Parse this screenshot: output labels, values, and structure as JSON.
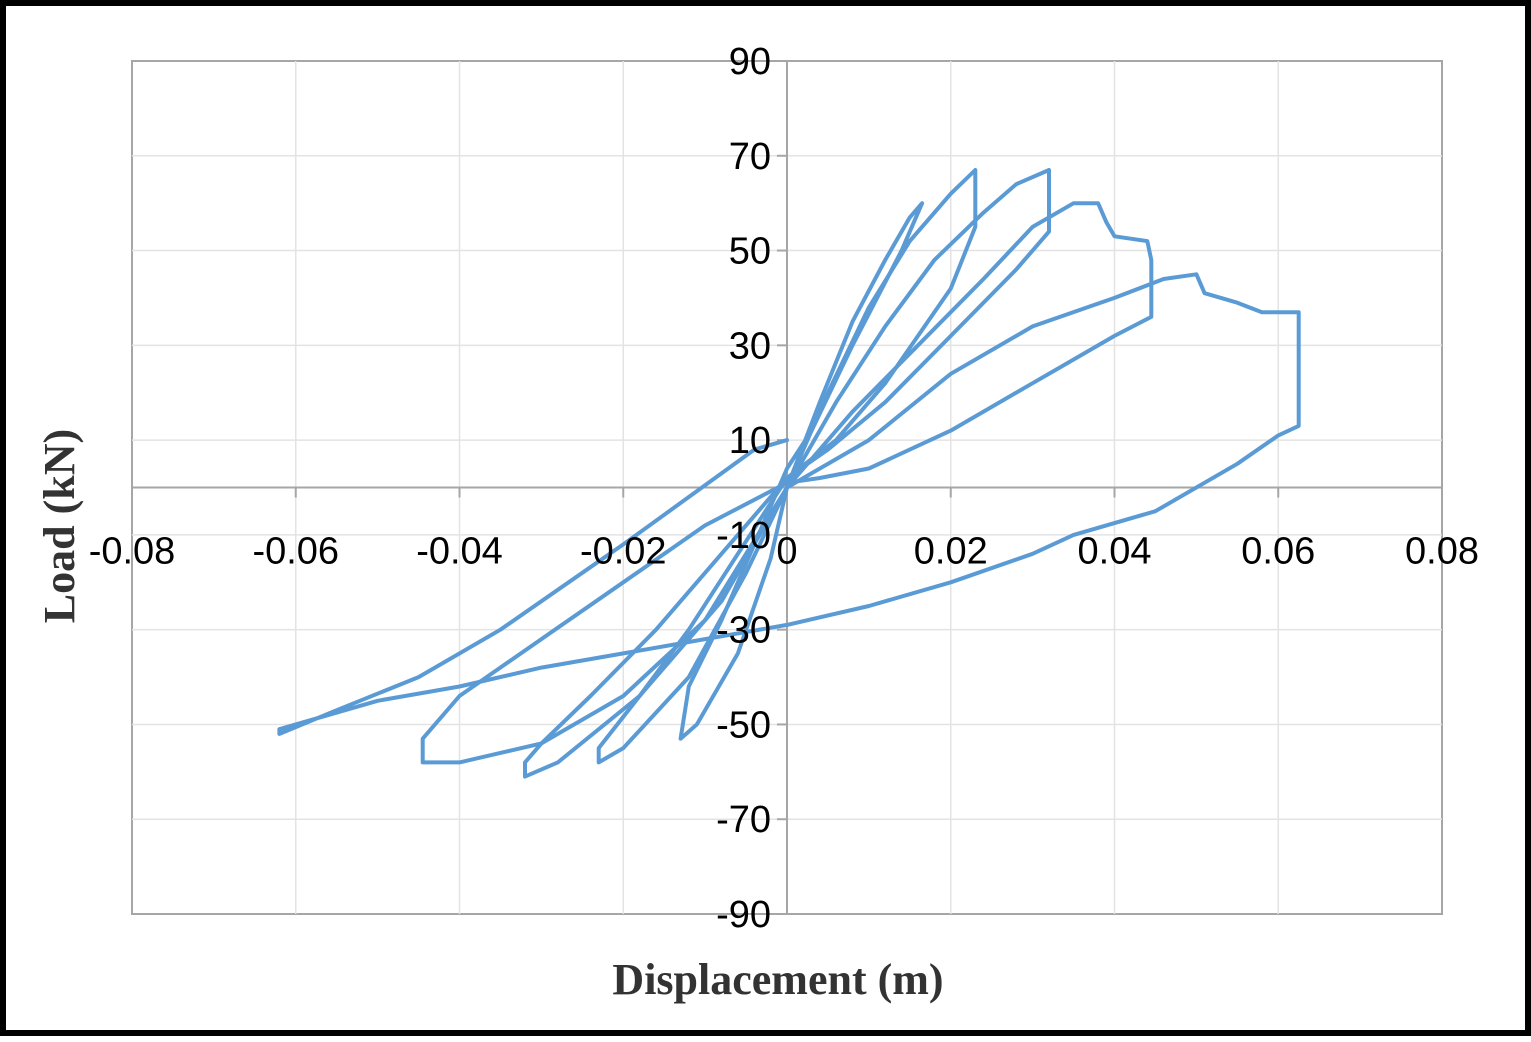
{
  "chart_data": {
    "type": "line",
    "title": "",
    "xlabel": "Displacement (m)",
    "ylabel": "Load (kN)",
    "xlim": [
      -0.08,
      0.08
    ],
    "ylim": [
      -90,
      90
    ],
    "x_ticks": [
      "-0.08",
      "-0.06",
      "-0.04",
      "-0.02",
      "0",
      "0.02",
      "0.04",
      "0.06",
      "0.08"
    ],
    "y_ticks": [
      "90",
      "70",
      "50",
      "30",
      "10",
      "-10",
      "-30",
      "-50",
      "-70",
      "-90"
    ],
    "grid": true,
    "legend": "none",
    "series": [
      {
        "color": "#5b9bd5",
        "loops": [
          {
            "x": [
              0,
              0.004,
              0.008,
              0.012,
              0.015,
              0.0165,
              0.014,
              0.008,
              0.003,
              0,
              -0.004,
              -0.008,
              -0.012,
              -0.013,
              -0.011,
              -0.006,
              -0.002,
              0
            ],
            "y": [
              0,
              18,
              35,
              48,
              57,
              60,
              50,
              30,
              12,
              4,
              -12,
              -28,
              -42,
              -53,
              -50,
              -35,
              -15,
              0
            ]
          },
          {
            "x": [
              0,
              0.005,
              0.01,
              0.015,
              0.02,
              0.023,
              0.023,
              0.02,
              0.012,
              0.006,
              0,
              -0.006,
              -0.012,
              -0.018,
              -0.023,
              -0.023,
              -0.02,
              -0.012,
              -0.005,
              0
            ],
            "y": [
              0,
              20,
              38,
              52,
              62,
              67,
              55,
              42,
              22,
              10,
              2,
              -14,
              -30,
              -44,
              -55,
              -58,
              -55,
              -40,
              -18,
              0
            ]
          },
          {
            "x": [
              0,
              0.006,
              0.012,
              0.018,
              0.024,
              0.028,
              0.032,
              0.032,
              0.028,
              0.02,
              0.012,
              0.005,
              0,
              -0.008,
              -0.016,
              -0.024,
              -0.03,
              -0.032,
              -0.032,
              -0.028,
              -0.018,
              -0.008,
              0
            ],
            "y": [
              0,
              18,
              34,
              48,
              58,
              64,
              67,
              54,
              46,
              32,
              18,
              8,
              2,
              -14,
              -30,
              -44,
              -54,
              -58,
              -61,
              -58,
              -44,
              -24,
              0
            ]
          },
          {
            "x": [
              0,
              0.008,
              0.016,
              0.024,
              0.03,
              0.035,
              0.038,
              0.039,
              0.04,
              0.044,
              0.0445,
              0.0445,
              0.04,
              0.03,
              0.02,
              0.01,
              0.004,
              0,
              -0.01,
              -0.02,
              -0.03,
              -0.04,
              -0.0445,
              -0.0445,
              -0.04,
              -0.03,
              -0.02,
              -0.01,
              0
            ],
            "y": [
              0,
              16,
              30,
              44,
              55,
              60,
              60,
              56,
              53,
              52,
              48,
              36,
              32,
              22,
              12,
              4,
              2,
              1,
              -8,
              -20,
              -32,
              -44,
              -53,
              -58,
              -58,
              -54,
              -44,
              -28,
              0
            ]
          },
          {
            "x": [
              0,
              0.01,
              0.02,
              0.03,
              0.04,
              0.046,
              0.05,
              0.051,
              0.055,
              0.058,
              0.0625,
              0.0625,
              0.06,
              0.055,
              0.045,
              0.035,
              0.03,
              0.02,
              0.01,
              0,
              -0.01,
              -0.02,
              -0.03,
              -0.04,
              -0.05,
              -0.058,
              -0.062,
              -0.062,
              -0.055,
              -0.045,
              -0.035,
              -0.025,
              -0.02,
              -0.012,
              -0.004,
              0
            ],
            "y": [
              0,
              10,
              24,
              34,
              40,
              44,
              45,
              41,
              39,
              37,
              37,
              13,
              11,
              5,
              -5,
              -10,
              -14,
              -20,
              -25,
              -29,
              -32,
              -35,
              -38,
              -42,
              -45,
              -49,
              -51,
              -52,
              -47,
              -40,
              -30,
              -18,
              -12,
              -2,
              8,
              10
            ]
          }
        ]
      }
    ]
  }
}
